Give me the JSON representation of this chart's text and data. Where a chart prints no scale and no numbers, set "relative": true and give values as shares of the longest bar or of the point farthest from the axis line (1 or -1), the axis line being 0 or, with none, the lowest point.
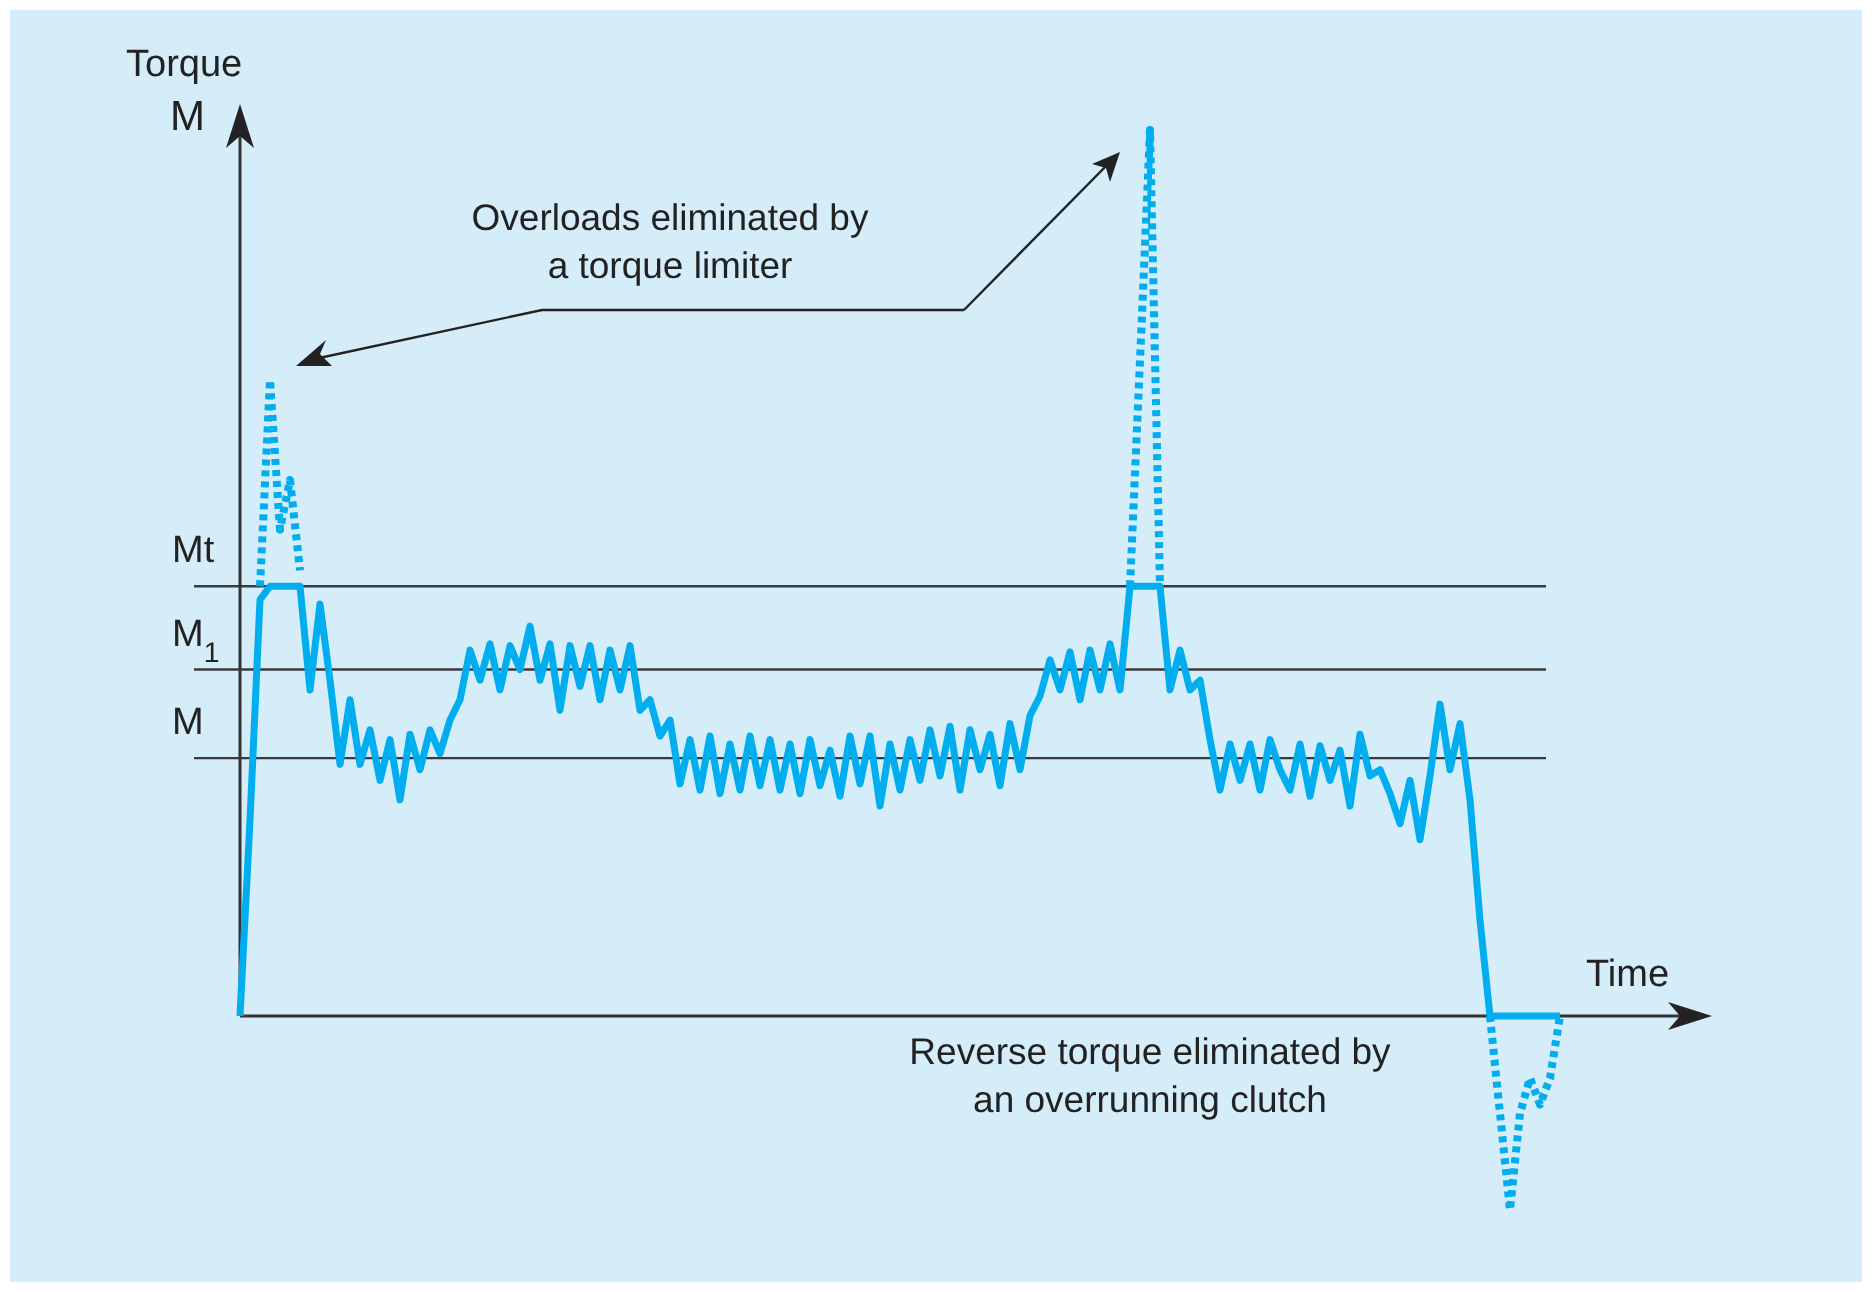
{
  "chart_data": {
    "type": "line",
    "ylabel": "Torque",
    "xlabel": "Time",
    "annotations": [
      "M",
      "Overloads eliminated by\na torque limiter",
      "Reverse torque eliminated by\nan overrunning clutch"
    ],
    "categories": [
      null,
      null,
      null,
      null,
      null,
      null,
      null,
      null,
      null,
      null,
      null,
      null,
      null,
      null,
      null,
      null,
      null,
      null,
      null,
      null,
      null,
      null,
      null,
      null,
      null,
      null,
      null,
      null,
      null,
      null,
      null,
      null,
      null,
      null,
      null,
      null,
      null,
      null,
      null,
      null,
      null,
      null,
      null,
      null,
      null,
      null,
      null,
      null,
      null,
      null,
      null,
      null,
      null,
      null,
      null,
      null,
      null,
      null,
      null,
      null,
      null,
      null,
      null,
      null,
      null,
      null,
      null,
      null,
      null,
      null,
      null,
      null,
      null,
      null,
      null,
      null,
      null,
      null,
      null,
      null,
      null,
      null,
      null,
      null,
      null,
      null,
      null,
      null,
      null,
      null,
      null,
      null,
      null,
      null,
      null,
      null,
      null,
      null,
      null,
      null,
      null,
      null,
      null,
      null,
      null,
      null,
      null,
      null,
      null,
      null,
      null,
      null,
      null,
      null,
      null,
      null,
      null,
      null,
      null,
      null,
      null,
      null,
      null,
      null,
      null,
      null,
      null,
      null,
      null,
      null,
      null,
      null,
      null
    ],
    "series": [
      {
        "color": "#00aeef",
        "line_style": "solid",
        "values": [
          0,
          0.221,
          0.47,
          0.485,
          0.485,
          0.485,
          0.485,
          0.368,
          0.465,
          0.379,
          0.284,
          0.357,
          0.284,
          0.323,
          0.266,
          0.312,
          0.244,
          0.318,
          0.278,
          0.323,
          0.296,
          0.334,
          0.357,
          0.413,
          0.379,
          0.42,
          0.368,
          0.418,
          0.391,
          0.44,
          0.379,
          0.42,
          0.345,
          0.418,
          0.372,
          0.418,
          0.357,
          0.413,
          0.368,
          0.418,
          0.345,
          0.357,
          0.316,
          0.334,
          0.262,
          0.312,
          0.255,
          0.316,
          0.251,
          0.307,
          0.255,
          0.316,
          0.26,
          0.312,
          0.255,
          0.307,
          0.251,
          0.312,
          0.26,
          0.3,
          0.248,
          0.316,
          0.262,
          0.316,
          0.237,
          0.307,
          0.255,
          0.312,
          0.266,
          0.323,
          0.271,
          0.327,
          0.255,
          0.323,
          0.278,
          0.318,
          0.26,
          0.33,
          0.278,
          0.339,
          0.361,
          0.402,
          0.368,
          0.411,
          0.357,
          0.413,
          0.368,
          0.42,
          0.368,
          0.485,
          0.485,
          0.485,
          0.485,
          0.368,
          0.413,
          0.368,
          0.379,
          0.312,
          0.255,
          0.307,
          0.266,
          0.307,
          0.255,
          0.312,
          0.278,
          0.255,
          0.307,
          0.248,
          0.305,
          0.266,
          0.3,
          0.237,
          0.318,
          0.271,
          0.278,
          0.251,
          0.217,
          0.266,
          0.199,
          0.271,
          0.352,
          0.278,
          0.33,
          0.244,
          0.108,
          0,
          0,
          0,
          0,
          0,
          0,
          0,
          0
        ]
      },
      {
        "color": "#00aeef",
        "line_style": "dotted",
        "values": [
          null,
          null,
          0.485,
          0.718,
          0.549,
          0.605,
          0.503,
          null,
          null,
          null,
          null,
          null,
          null,
          null,
          null,
          null,
          null,
          null,
          null,
          null,
          null,
          null,
          null,
          null,
          null,
          null,
          null,
          null,
          null,
          null,
          null,
          null,
          null,
          null,
          null,
          null,
          null,
          null,
          null,
          null,
          null,
          null,
          null,
          null,
          null,
          null,
          null,
          null,
          null,
          null,
          null,
          null,
          null,
          null,
          null,
          null,
          null,
          null,
          null,
          null,
          null,
          null,
          null,
          null,
          null,
          null,
          null,
          null,
          null,
          null,
          null,
          null,
          null,
          null,
          null,
          null,
          null,
          null,
          null,
          null,
          null,
          null,
          null,
          null,
          null,
          null,
          null,
          null,
          null,
          0.485,
          0.74,
          1,
          0.485,
          null,
          null,
          null,
          null,
          null,
          null,
          null,
          null,
          null,
          null,
          null,
          null,
          null,
          null,
          null,
          null,
          null,
          null,
          null,
          null,
          null,
          null,
          null,
          null,
          null,
          null,
          null,
          null,
          null,
          null,
          null,
          null,
          0,
          -0.11,
          -0.219,
          -0.11,
          -0.07,
          -0.1,
          -0.07,
          0
        ]
      }
    ],
    "ref_lines": [
      {
        "axis": "y",
        "value": 0.485,
        "label": "Mt",
        "color": "#3a3a3a"
      },
      {
        "axis": "y",
        "value": 0.391,
        "label": "M$_{1}$",
        "color": "#3a3a3a"
      },
      {
        "axis": "y",
        "value": 0.291,
        "label": "M",
        "color": "#3a3a3a"
      }
    ],
    "relative": true
  }
}
